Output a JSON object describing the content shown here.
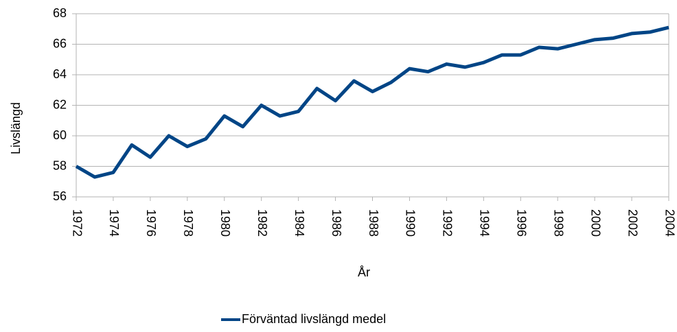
{
  "chart_data": {
    "type": "line",
    "x_label": "År",
    "y_label": "Livslängd",
    "x": [
      1972,
      1973,
      1974,
      1975,
      1976,
      1977,
      1978,
      1979,
      1980,
      1981,
      1982,
      1983,
      1984,
      1985,
      1986,
      1987,
      1988,
      1989,
      1990,
      1991,
      1992,
      1993,
      1994,
      1995,
      1996,
      1997,
      1998,
      1999,
      2000,
      2001,
      2002,
      2003,
      2004
    ],
    "series": [
      {
        "name": "Förväntad livslängd medel",
        "color": "#004586",
        "values": [
          58.0,
          57.3,
          57.6,
          59.4,
          58.6,
          60.0,
          59.3,
          59.8,
          61.3,
          60.6,
          62.0,
          61.3,
          61.6,
          63.1,
          62.3,
          63.6,
          62.9,
          63.5,
          64.4,
          64.2,
          64.7,
          64.5,
          64.8,
          65.3,
          65.3,
          65.8,
          65.7,
          66.0,
          66.3,
          66.4,
          66.7,
          66.8,
          67.1
        ]
      }
    ],
    "xlim": [
      1972,
      2004
    ],
    "xticks": [
      1972,
      1974,
      1976,
      1978,
      1980,
      1982,
      1984,
      1986,
      1988,
      1990,
      1992,
      1994,
      1996,
      1998,
      2000,
      2002,
      2004
    ],
    "ylim": [
      56,
      68
    ],
    "yticks": [
      56,
      58,
      60,
      62,
      64,
      66,
      68
    ],
    "grid": true,
    "legend": "bottom"
  }
}
